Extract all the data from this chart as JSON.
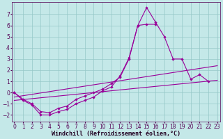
{
  "background_color": "#c4e8e8",
  "grid_color": "#96c8c8",
  "line_color": "#990099",
  "xlabel": "Windchill (Refroidissement éolien,°C)",
  "xlabel_fontsize": 6,
  "tick_fontsize": 5.5,
  "xlim": [
    -0.3,
    23.3
  ],
  "ylim": [
    -2.6,
    8.1
  ],
  "yticks": [
    -2,
    -1,
    0,
    1,
    2,
    3,
    4,
    5,
    6,
    7
  ],
  "xticks": [
    0,
    1,
    2,
    3,
    4,
    5,
    6,
    7,
    8,
    9,
    10,
    11,
    12,
    13,
    14,
    15,
    16,
    17,
    18,
    19,
    20,
    21,
    22,
    23
  ],
  "curve1_x": [
    0,
    1,
    2,
    3,
    4,
    5,
    6,
    7,
    8,
    9,
    10,
    11,
    12,
    13,
    14,
    15,
    16,
    17,
    18,
    19,
    20,
    21,
    22
  ],
  "curve1_y": [
    0.0,
    -0.7,
    -1.1,
    -2.0,
    -2.0,
    -1.7,
    -1.5,
    -1.0,
    -0.7,
    -0.4,
    0.15,
    0.5,
    1.5,
    3.1,
    6.0,
    7.6,
    6.3,
    5.0,
    3.0,
    3.0,
    1.2,
    1.6,
    1.0
  ],
  "curve2_x": [
    0,
    1,
    2,
    3,
    4,
    5,
    6,
    7,
    8,
    9,
    10,
    11,
    12,
    13,
    14,
    15,
    16
  ],
  "curve2_y": [
    0.0,
    -0.6,
    -1.0,
    -1.7,
    -1.8,
    -1.4,
    -1.2,
    -0.6,
    -0.3,
    0.0,
    0.3,
    0.8,
    1.4,
    3.0,
    6.0,
    6.1,
    6.1
  ],
  "trend1_x": [
    0,
    23
  ],
  "trend1_y": [
    -0.4,
    2.4
  ],
  "trend2_x": [
    0,
    23
  ],
  "trend2_y": [
    -0.7,
    1.1
  ]
}
